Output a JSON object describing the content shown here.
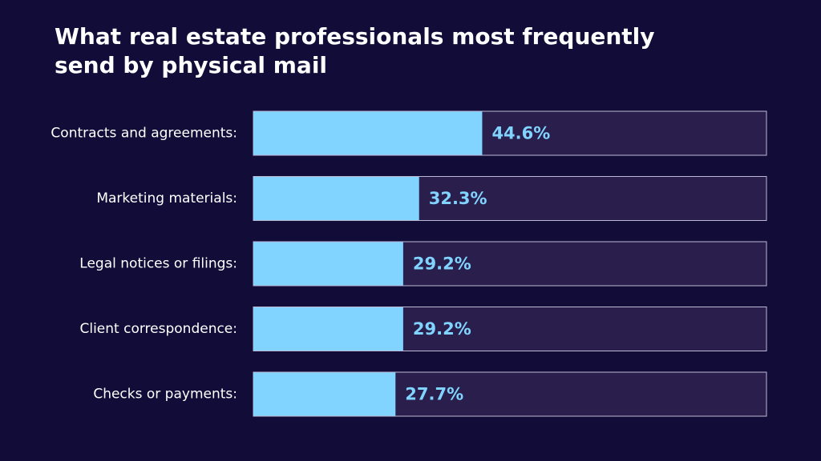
{
  "chart_data": {
    "type": "bar",
    "orientation": "horizontal",
    "title": "What real estate professionals most frequently send by physical mail",
    "categories": [
      "Contracts and agreements:",
      "Marketing materials:",
      "Legal notices or filings:",
      "Client correspondence:",
      "Checks or payments:"
    ],
    "values": [
      44.6,
      32.3,
      29.2,
      29.2,
      27.7
    ],
    "value_labels": [
      "44.6%",
      "32.3%",
      "29.2%",
      "29.2%",
      "27.7%"
    ],
    "color": "#80d4ff",
    "xlim": [
      0,
      100
    ]
  }
}
